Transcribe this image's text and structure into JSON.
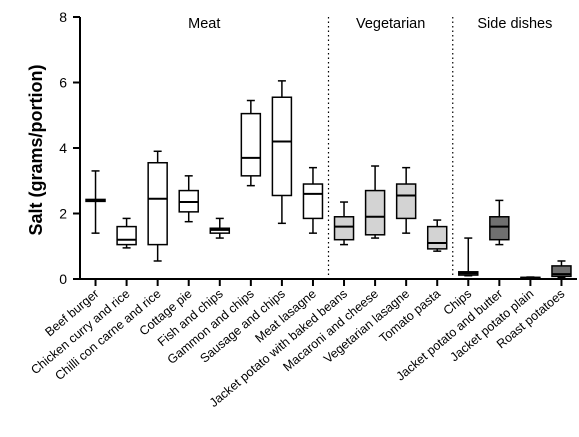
{
  "chart_data": {
    "type": "boxplot",
    "ylabel": "Salt (grams/portion)",
    "ylim": [
      0,
      8
    ],
    "yticks": [
      0,
      2,
      4,
      6,
      8
    ],
    "groups": [
      {
        "label": "Meat",
        "start": 0,
        "end": 8
      },
      {
        "label": "Vegetarian",
        "start": 8,
        "end": 12
      },
      {
        "label": "Side dishes",
        "start": 12,
        "end": 16
      }
    ],
    "categories": [
      "Beef burger",
      "Chicken curry and rice",
      "Chilli con carne and rice",
      "Cottage pie",
      "Fish and chips",
      "Gammon and chips",
      "Sausage and chips",
      "Meat lasagne",
      "Jacket potato with baked beans",
      "Macaroni and cheese",
      "Vegetarian lasagne",
      "Tomato pasta",
      "Chips",
      "Jacket potato and butter",
      "Jacket potato plain",
      "Roast potatoes"
    ],
    "boxes": [
      {
        "min": 1.4,
        "q1": 2.37,
        "median": 2.4,
        "q3": 2.43,
        "max": 3.3,
        "fill": "#ffffff"
      },
      {
        "min": 0.95,
        "q1": 1.05,
        "median": 1.2,
        "q3": 1.6,
        "max": 1.85,
        "fill": "#ffffff"
      },
      {
        "min": 0.55,
        "q1": 1.05,
        "median": 2.45,
        "q3": 3.55,
        "max": 3.9,
        "fill": "#ffffff"
      },
      {
        "min": 1.75,
        "q1": 2.05,
        "median": 2.35,
        "q3": 2.7,
        "max": 3.15,
        "fill": "#ffffff"
      },
      {
        "min": 1.25,
        "q1": 1.4,
        "median": 1.5,
        "q3": 1.55,
        "max": 1.85,
        "fill": "#ffffff"
      },
      {
        "min": 2.85,
        "q1": 3.15,
        "median": 3.7,
        "q3": 5.05,
        "max": 5.45,
        "fill": "#ffffff"
      },
      {
        "min": 1.7,
        "q1": 2.55,
        "median": 4.2,
        "q3": 5.55,
        "max": 6.05,
        "fill": "#ffffff"
      },
      {
        "min": 1.4,
        "q1": 1.85,
        "median": 2.6,
        "q3": 2.9,
        "max": 3.4,
        "fill": "#ffffff"
      },
      {
        "min": 1.05,
        "q1": 1.2,
        "median": 1.6,
        "q3": 1.9,
        "max": 2.35,
        "fill": "#d3d3d3"
      },
      {
        "min": 1.25,
        "q1": 1.35,
        "median": 1.9,
        "q3": 2.7,
        "max": 3.45,
        "fill": "#d3d3d3"
      },
      {
        "min": 1.4,
        "q1": 1.85,
        "median": 2.55,
        "q3": 2.9,
        "max": 3.4,
        "fill": "#d3d3d3"
      },
      {
        "min": 0.85,
        "q1": 0.92,
        "median": 1.1,
        "q3": 1.6,
        "max": 1.8,
        "fill": "#d3d3d3"
      },
      {
        "min": 0.1,
        "q1": 0.12,
        "median": 0.18,
        "q3": 0.22,
        "max": 1.25,
        "fill": "#595959"
      },
      {
        "min": 1.05,
        "q1": 1.2,
        "median": 1.6,
        "q3": 1.9,
        "max": 2.4,
        "fill": "#707070"
      },
      {
        "min": 0.02,
        "q1": 0.03,
        "median": 0.04,
        "q3": 0.05,
        "max": 0.06,
        "fill": "#707070"
      },
      {
        "min": 0.05,
        "q1": 0.08,
        "median": 0.15,
        "q3": 0.4,
        "max": 0.55,
        "fill": "#707070"
      }
    ],
    "grid": false,
    "group_separators": "dotted"
  }
}
